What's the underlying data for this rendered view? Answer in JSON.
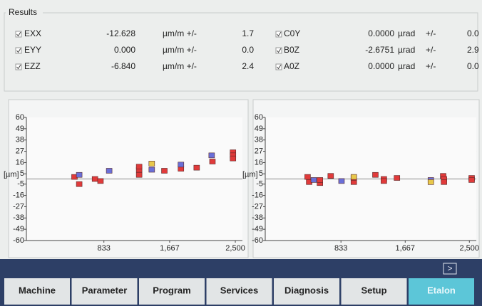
{
  "results": {
    "title": "Results",
    "left": [
      {
        "label": "EXX",
        "value": "-12.628",
        "unit": "µm/m +/-",
        "tolerance": "1.7"
      },
      {
        "label": "EYY",
        "value": "0.000",
        "unit": "µm/m +/-",
        "tolerance": "0.0"
      },
      {
        "label": "EZZ",
        "value": "-6.840",
        "unit": "µm/m +/-",
        "tolerance": "2.4"
      }
    ],
    "right": [
      {
        "label": "C0Y",
        "value": "0.0000",
        "unit": "µrad",
        "sign": "+/-",
        "tolerance": "0.0"
      },
      {
        "label": "B0Z",
        "value": "-2.6751",
        "unit": "µrad",
        "sign": "+/-",
        "tolerance": "2.9"
      },
      {
        "label": "A0Z",
        "value": "0.0000",
        "unit": "µrad",
        "sign": "+/-",
        "tolerance": "0.0"
      }
    ]
  },
  "charts": [
    {
      "type": "scatter",
      "y_label": "[µm]",
      "xlim": [
        -150,
        2590
      ],
      "ylim": [
        -60,
        60
      ],
      "yticks": [
        60,
        49,
        38,
        27,
        16,
        5,
        -5,
        -16,
        -27,
        -38,
        -49,
        -60
      ],
      "xticks": [
        833,
        {
          "value": 1667,
          "label": "1,667"
        },
        {
          "value": 2500,
          "label": "2,500"
        }
      ],
      "series": [
        {
          "color": "#e03a3a",
          "x": [
            460,
            520,
            720,
            790,
            1280,
            1280,
            1280,
            1600,
            1810,
            1810,
            2010,
            2470,
            2470,
            2470,
            2210
          ],
          "y": [
            2,
            -5,
            0,
            -2,
            4,
            9,
            12,
            8,
            14,
            10,
            11,
            26,
            23,
            20,
            17
          ]
        },
        {
          "color": "#6a6fd8",
          "x": [
            520,
            900,
            1440,
            1810,
            2200
          ],
          "y": [
            4,
            8,
            9,
            14,
            23
          ]
        },
        {
          "color": "#e8c84a",
          "x": [
            1440
          ],
          "y": [
            15
          ]
        }
      ]
    },
    {
      "type": "scatter",
      "y_label": "[µm]",
      "xlim": [
        -150,
        2590
      ],
      "ylim": [
        -60,
        60
      ],
      "yticks": [
        60,
        49,
        38,
        27,
        16,
        5,
        -5,
        -16,
        -27,
        -38,
        -49,
        -60
      ],
      "xticks": [
        833,
        {
          "value": 1667,
          "label": "1,667"
        },
        {
          "value": 2500,
          "label": "2,500"
        }
      ],
      "series": [
        {
          "color": "#e03a3a",
          "x": [
            400,
            420,
            560,
            560,
            700,
            1000,
            1000,
            1280,
            1390,
            1390,
            1560,
            2160,
            2170,
            2170,
            2530,
            2530
          ],
          "y": [
            2,
            -3,
            -4,
            -1,
            3,
            -3,
            1,
            4,
            0,
            -2,
            1,
            3,
            0,
            -3,
            1,
            -1
          ]
        },
        {
          "color": "#6a6fd8",
          "x": [
            480,
            840,
            2000
          ],
          "y": [
            -1,
            -2,
            -1
          ]
        },
        {
          "color": "#e8c84a",
          "x": [
            1000,
            2000
          ],
          "y": [
            2,
            -3
          ]
        }
      ]
    }
  ],
  "nav": {
    "buttons": [
      "Machine",
      "Parameter",
      "Program",
      "Services",
      "Diagnosis",
      "Setup",
      "Etalon"
    ]
  }
}
